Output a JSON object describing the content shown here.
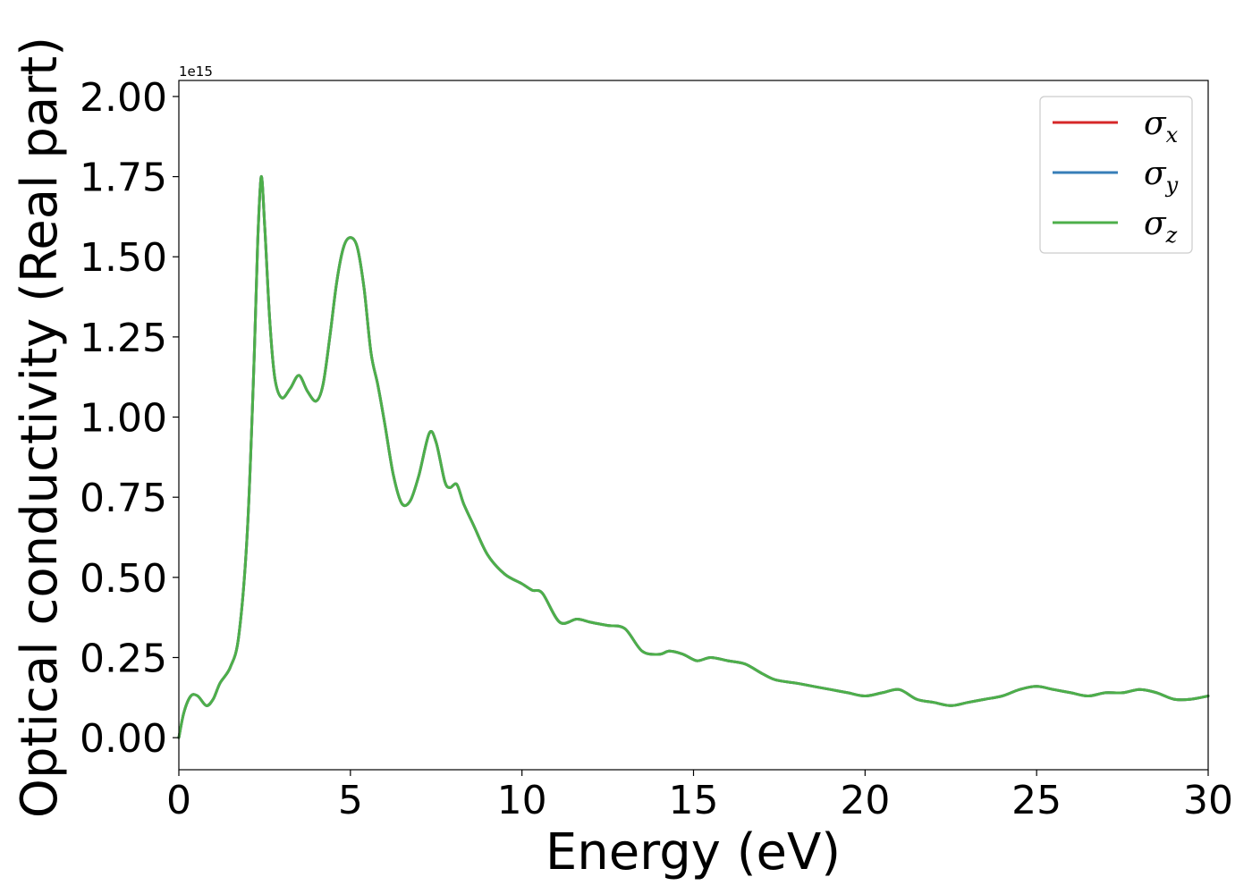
{
  "chart_data": {
    "type": "line",
    "title": "",
    "xlabel": "Energy (eV)",
    "ylabel": "Optical conductivity (Real part)",
    "y_offset_label": "1e15",
    "xlim": [
      0,
      30
    ],
    "ylim": [
      -0.1,
      2.05
    ],
    "x_ticks": [
      0,
      5,
      10,
      15,
      20,
      25,
      30
    ],
    "x_tick_labels": [
      "0",
      "5",
      "10",
      "15",
      "20",
      "25",
      "30"
    ],
    "y_ticks": [
      0,
      0.25,
      0.5,
      0.75,
      1.0,
      1.25,
      1.5,
      1.75,
      2.0
    ],
    "y_tick_labels": [
      "0.00",
      "0.25",
      "0.50",
      "0.75",
      "1.00",
      "1.25",
      "1.50",
      "1.75",
      "2.00"
    ],
    "grid": false,
    "legend_position": "top-right",
    "x": [
      0,
      0.15,
      0.35,
      0.55,
      0.8,
      1.0,
      1.2,
      1.5,
      1.75,
      2.0,
      2.2,
      2.3,
      2.4,
      2.5,
      2.65,
      2.8,
      3.0,
      3.25,
      3.5,
      3.75,
      4.0,
      4.2,
      4.4,
      4.6,
      4.8,
      5.0,
      5.2,
      5.4,
      5.6,
      5.8,
      6.0,
      6.25,
      6.5,
      6.75,
      7.0,
      7.3,
      7.5,
      7.75,
      7.9,
      8.1,
      8.3,
      8.6,
      9.0,
      9.5,
      10.0,
      10.3,
      10.6,
      11.1,
      11.6,
      12.0,
      12.5,
      13.0,
      13.5,
      14.0,
      14.3,
      14.7,
      15.1,
      15.5,
      16.0,
      16.5,
      17.0,
      17.4,
      18.0,
      18.5,
      19.0,
      19.5,
      20.0,
      20.5,
      21.0,
      21.5,
      22.0,
      22.5,
      23.0,
      23.5,
      24.0,
      24.5,
      25.0,
      25.5,
      26.0,
      26.5,
      27.0,
      27.5,
      28.0,
      28.5,
      29.0,
      29.5,
      30.0
    ],
    "series": [
      {
        "name": "σ_x",
        "color": "#d62728",
        "values": [
          0.0,
          0.08,
          0.13,
          0.13,
          0.1,
          0.12,
          0.17,
          0.22,
          0.32,
          0.65,
          1.2,
          1.55,
          1.75,
          1.6,
          1.3,
          1.12,
          1.06,
          1.09,
          1.13,
          1.08,
          1.05,
          1.1,
          1.25,
          1.42,
          1.53,
          1.56,
          1.53,
          1.4,
          1.2,
          1.1,
          0.98,
          0.82,
          0.73,
          0.74,
          0.82,
          0.95,
          0.92,
          0.8,
          0.78,
          0.79,
          0.73,
          0.66,
          0.57,
          0.51,
          0.48,
          0.46,
          0.45,
          0.36,
          0.37,
          0.36,
          0.35,
          0.34,
          0.27,
          0.26,
          0.27,
          0.26,
          0.24,
          0.25,
          0.24,
          0.23,
          0.2,
          0.18,
          0.17,
          0.16,
          0.15,
          0.14,
          0.13,
          0.14,
          0.15,
          0.12,
          0.11,
          0.1,
          0.11,
          0.12,
          0.13,
          0.15,
          0.16,
          0.15,
          0.14,
          0.13,
          0.14,
          0.14,
          0.15,
          0.14,
          0.12,
          0.12,
          0.13
        ]
      },
      {
        "name": "σ_y",
        "color": "#377eb8",
        "values": [
          0.0,
          0.08,
          0.13,
          0.13,
          0.1,
          0.12,
          0.17,
          0.22,
          0.32,
          0.65,
          1.2,
          1.55,
          1.75,
          1.6,
          1.3,
          1.12,
          1.06,
          1.09,
          1.13,
          1.08,
          1.05,
          1.1,
          1.25,
          1.42,
          1.53,
          1.56,
          1.53,
          1.4,
          1.2,
          1.1,
          0.98,
          0.82,
          0.73,
          0.74,
          0.82,
          0.95,
          0.92,
          0.8,
          0.78,
          0.79,
          0.73,
          0.66,
          0.57,
          0.51,
          0.48,
          0.46,
          0.45,
          0.36,
          0.37,
          0.36,
          0.35,
          0.34,
          0.27,
          0.26,
          0.27,
          0.26,
          0.24,
          0.25,
          0.24,
          0.23,
          0.2,
          0.18,
          0.17,
          0.16,
          0.15,
          0.14,
          0.13,
          0.14,
          0.15,
          0.12,
          0.11,
          0.1,
          0.11,
          0.12,
          0.13,
          0.15,
          0.16,
          0.15,
          0.14,
          0.13,
          0.14,
          0.14,
          0.15,
          0.14,
          0.12,
          0.12,
          0.13
        ]
      },
      {
        "name": "σ_z",
        "color": "#4daf4a",
        "values": [
          0.0,
          0.08,
          0.13,
          0.13,
          0.1,
          0.12,
          0.17,
          0.22,
          0.32,
          0.65,
          1.2,
          1.55,
          1.75,
          1.6,
          1.3,
          1.12,
          1.06,
          1.09,
          1.13,
          1.08,
          1.05,
          1.1,
          1.25,
          1.42,
          1.53,
          1.56,
          1.53,
          1.4,
          1.2,
          1.1,
          0.98,
          0.82,
          0.73,
          0.74,
          0.82,
          0.95,
          0.92,
          0.8,
          0.78,
          0.79,
          0.73,
          0.66,
          0.57,
          0.51,
          0.48,
          0.46,
          0.45,
          0.36,
          0.37,
          0.36,
          0.35,
          0.34,
          0.27,
          0.26,
          0.27,
          0.26,
          0.24,
          0.25,
          0.24,
          0.23,
          0.2,
          0.18,
          0.17,
          0.16,
          0.15,
          0.14,
          0.13,
          0.14,
          0.15,
          0.12,
          0.11,
          0.1,
          0.11,
          0.12,
          0.13,
          0.15,
          0.16,
          0.15,
          0.14,
          0.13,
          0.14,
          0.14,
          0.15,
          0.14,
          0.12,
          0.12,
          0.13
        ]
      }
    ],
    "legend": [
      {
        "symbol": "σ",
        "subscript": "x",
        "color": "#d62728"
      },
      {
        "symbol": "σ",
        "subscript": "y",
        "color": "#377eb8"
      },
      {
        "symbol": "σ",
        "subscript": "z",
        "color": "#4daf4a"
      }
    ]
  }
}
